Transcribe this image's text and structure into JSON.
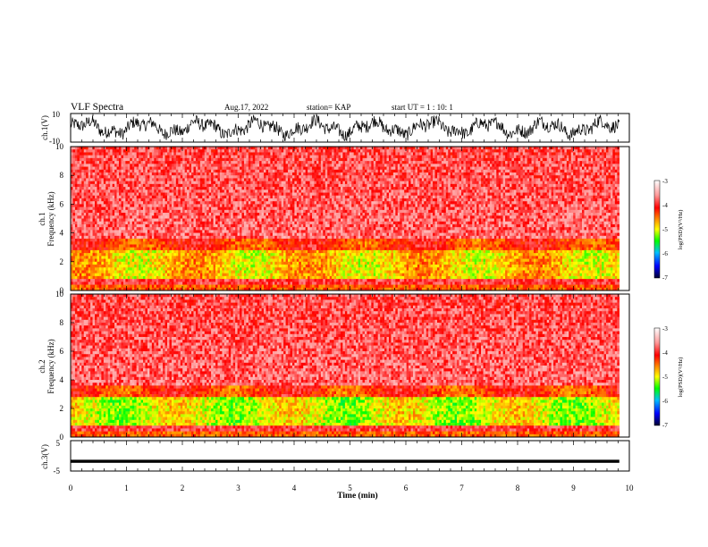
{
  "header": {
    "title": "VLF Spectra",
    "date": "Aug.17, 2022",
    "station": "station= KAP",
    "start": "start  UT =   1 : 10: 1"
  },
  "colorbar": {
    "label": "log(PSD)(V²/Hz)",
    "ticks": [
      "-3",
      "-4",
      "-5",
      "-6",
      "-7"
    ],
    "colors": [
      "#ffffff",
      "#ff9a9a",
      "#ff0000",
      "#ffa000",
      "#ffff00",
      "#00ff00",
      "#00c0ff",
      "#0000ff",
      "#000030"
    ]
  },
  "chart_data": [
    {
      "type": "line",
      "panel": "ch1-waveform",
      "ylabel": "ch.1(V)",
      "ylim": [
        -10,
        10
      ],
      "y_ticks": [
        "10",
        "-10"
      ],
      "xlim": [
        0,
        10
      ]
    },
    {
      "type": "heatmap",
      "panel": "ch1-spectrogram",
      "ylabel": "ch.1\nFrequency (kHz)",
      "ylim": [
        0,
        10
      ],
      "y_ticks": [
        "0",
        "2",
        "4",
        "6",
        "8",
        "10"
      ],
      "xlim": [
        0,
        10
      ],
      "clim": [
        -7,
        -3
      ]
    },
    {
      "type": "heatmap",
      "panel": "ch2-spectrogram",
      "ylabel": "ch.2\nFrequency (kHz)",
      "ylim": [
        0,
        10
      ],
      "y_ticks": [
        "0",
        "2",
        "4",
        "6",
        "8",
        "10"
      ],
      "xlim": [
        0,
        10
      ],
      "clim": [
        -7,
        -3
      ]
    },
    {
      "type": "line",
      "panel": "ch3-waveform",
      "ylabel": "ch.3(V)",
      "ylim": [
        -5,
        5
      ],
      "y_ticks": [
        "5",
        "0",
        "-5"
      ],
      "xlim": [
        0,
        10
      ]
    }
  ],
  "xaxis": {
    "label": "Time  (min)",
    "ticks": [
      "0",
      "1",
      "2",
      "3",
      "4",
      "5",
      "6",
      "7",
      "8",
      "9",
      "10"
    ]
  }
}
